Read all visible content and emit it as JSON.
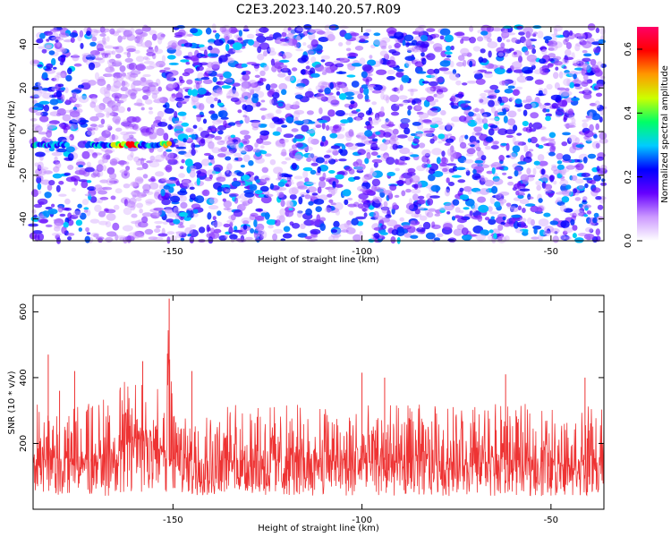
{
  "title": "C2E3.2023.140.20.57.R09",
  "chart_data": [
    {
      "type": "heatmap",
      "xlabel": "Height of straight line (km)",
      "ylabel": "Frequency (Hz)",
      "xlim": [
        -187,
        -36
      ],
      "ylim": [
        -50,
        48
      ],
      "xticks": [
        -150,
        -100,
        -50
      ],
      "yticks": [
        -40,
        -20,
        0,
        20,
        40
      ],
      "colorbar": {
        "label": "Normalized spectral amplitude",
        "range": [
          0.0,
          0.67
        ],
        "ticks": [
          0.0,
          0.2,
          0.4,
          0.6
        ],
        "colormap": [
          "#ffffff",
          "#cc99ff",
          "#6600ff",
          "#0000ff",
          "#00ccff",
          "#00ff66",
          "#ccff00",
          "#ff9900",
          "#ff0000",
          "#ff0066"
        ]
      },
      "signal": {
        "x_range": [
          -187,
          -151
        ],
        "frequency": -6,
        "peak_amplitude": 0.6
      },
      "quiet_band": {
        "x_range": [
          -171,
          -153
        ]
      }
    },
    {
      "type": "line",
      "xlabel": "Height of straight line (km)",
      "ylabel": "SNR (10 * v/v)",
      "xlim": [
        -187,
        -36
      ],
      "ylim": [
        0,
        650
      ],
      "xticks": [
        -150,
        -100,
        -50
      ],
      "yticks": [
        200,
        400,
        600
      ],
      "color": "#ee3333",
      "series": [
        {
          "envelope": [
            {
              "x": -187,
              "low": 40,
              "high": 320,
              "mean": 150
            },
            {
              "x": -170,
              "low": 40,
              "high": 330,
              "mean": 150
            },
            {
              "x": -165,
              "low": 40,
              "high": 380,
              "mean": 170
            },
            {
              "x": -160,
              "low": 50,
              "high": 400,
              "mean": 220
            },
            {
              "x": -155,
              "low": 50,
              "high": 380,
              "mean": 215
            },
            {
              "x": -152,
              "low": 40,
              "high": 340,
              "mean": 160
            },
            {
              "x": -151,
              "low": 60,
              "high": 640,
              "mean": 290
            },
            {
              "x": -150,
              "low": 40,
              "high": 320,
              "mean": 150
            },
            {
              "x": -100,
              "low": 40,
              "high": 320,
              "mean": 145
            },
            {
              "x": -36,
              "low": 40,
              "high": 320,
              "mean": 145
            }
          ],
          "spikes": [
            {
              "x": -183,
              "value": 470
            },
            {
              "x": -180,
              "value": 360
            },
            {
              "x": -176,
              "value": 420
            },
            {
              "x": -158,
              "value": 450
            },
            {
              "x": -151,
              "value": 640
            },
            {
              "x": -145,
              "value": 420
            },
            {
              "x": -100,
              "value": 415
            },
            {
              "x": -94,
              "value": 400
            },
            {
              "x": -62,
              "value": 410
            },
            {
              "x": -41,
              "value": 400
            }
          ]
        }
      ]
    }
  ]
}
